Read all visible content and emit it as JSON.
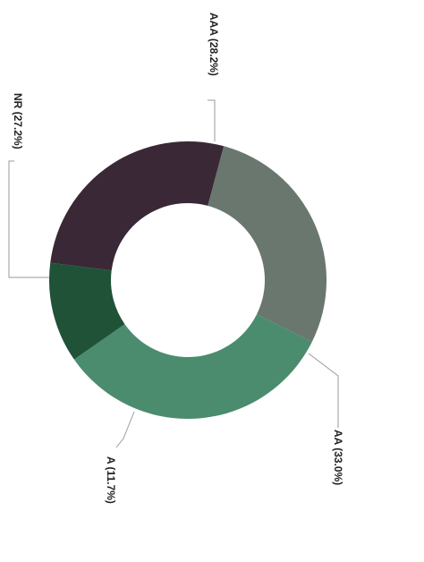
{
  "chart_data": {
    "type": "pie",
    "variant": "donut",
    "orientation_note": "labels read rotated 90 degrees clockwise",
    "series": [
      {
        "label": "AAA (28.2%)",
        "value": 28.2,
        "color": "#69776e"
      },
      {
        "label": "AA (33.0%)",
        "value": 33.0,
        "color": "#4b8c6e"
      },
      {
        "label": "A (11.7%)",
        "value": 11.7,
        "color": "#1f5237"
      },
      {
        "label": "NR (27.2%)",
        "value": 27.2,
        "color": "#3a2836"
      }
    ]
  }
}
